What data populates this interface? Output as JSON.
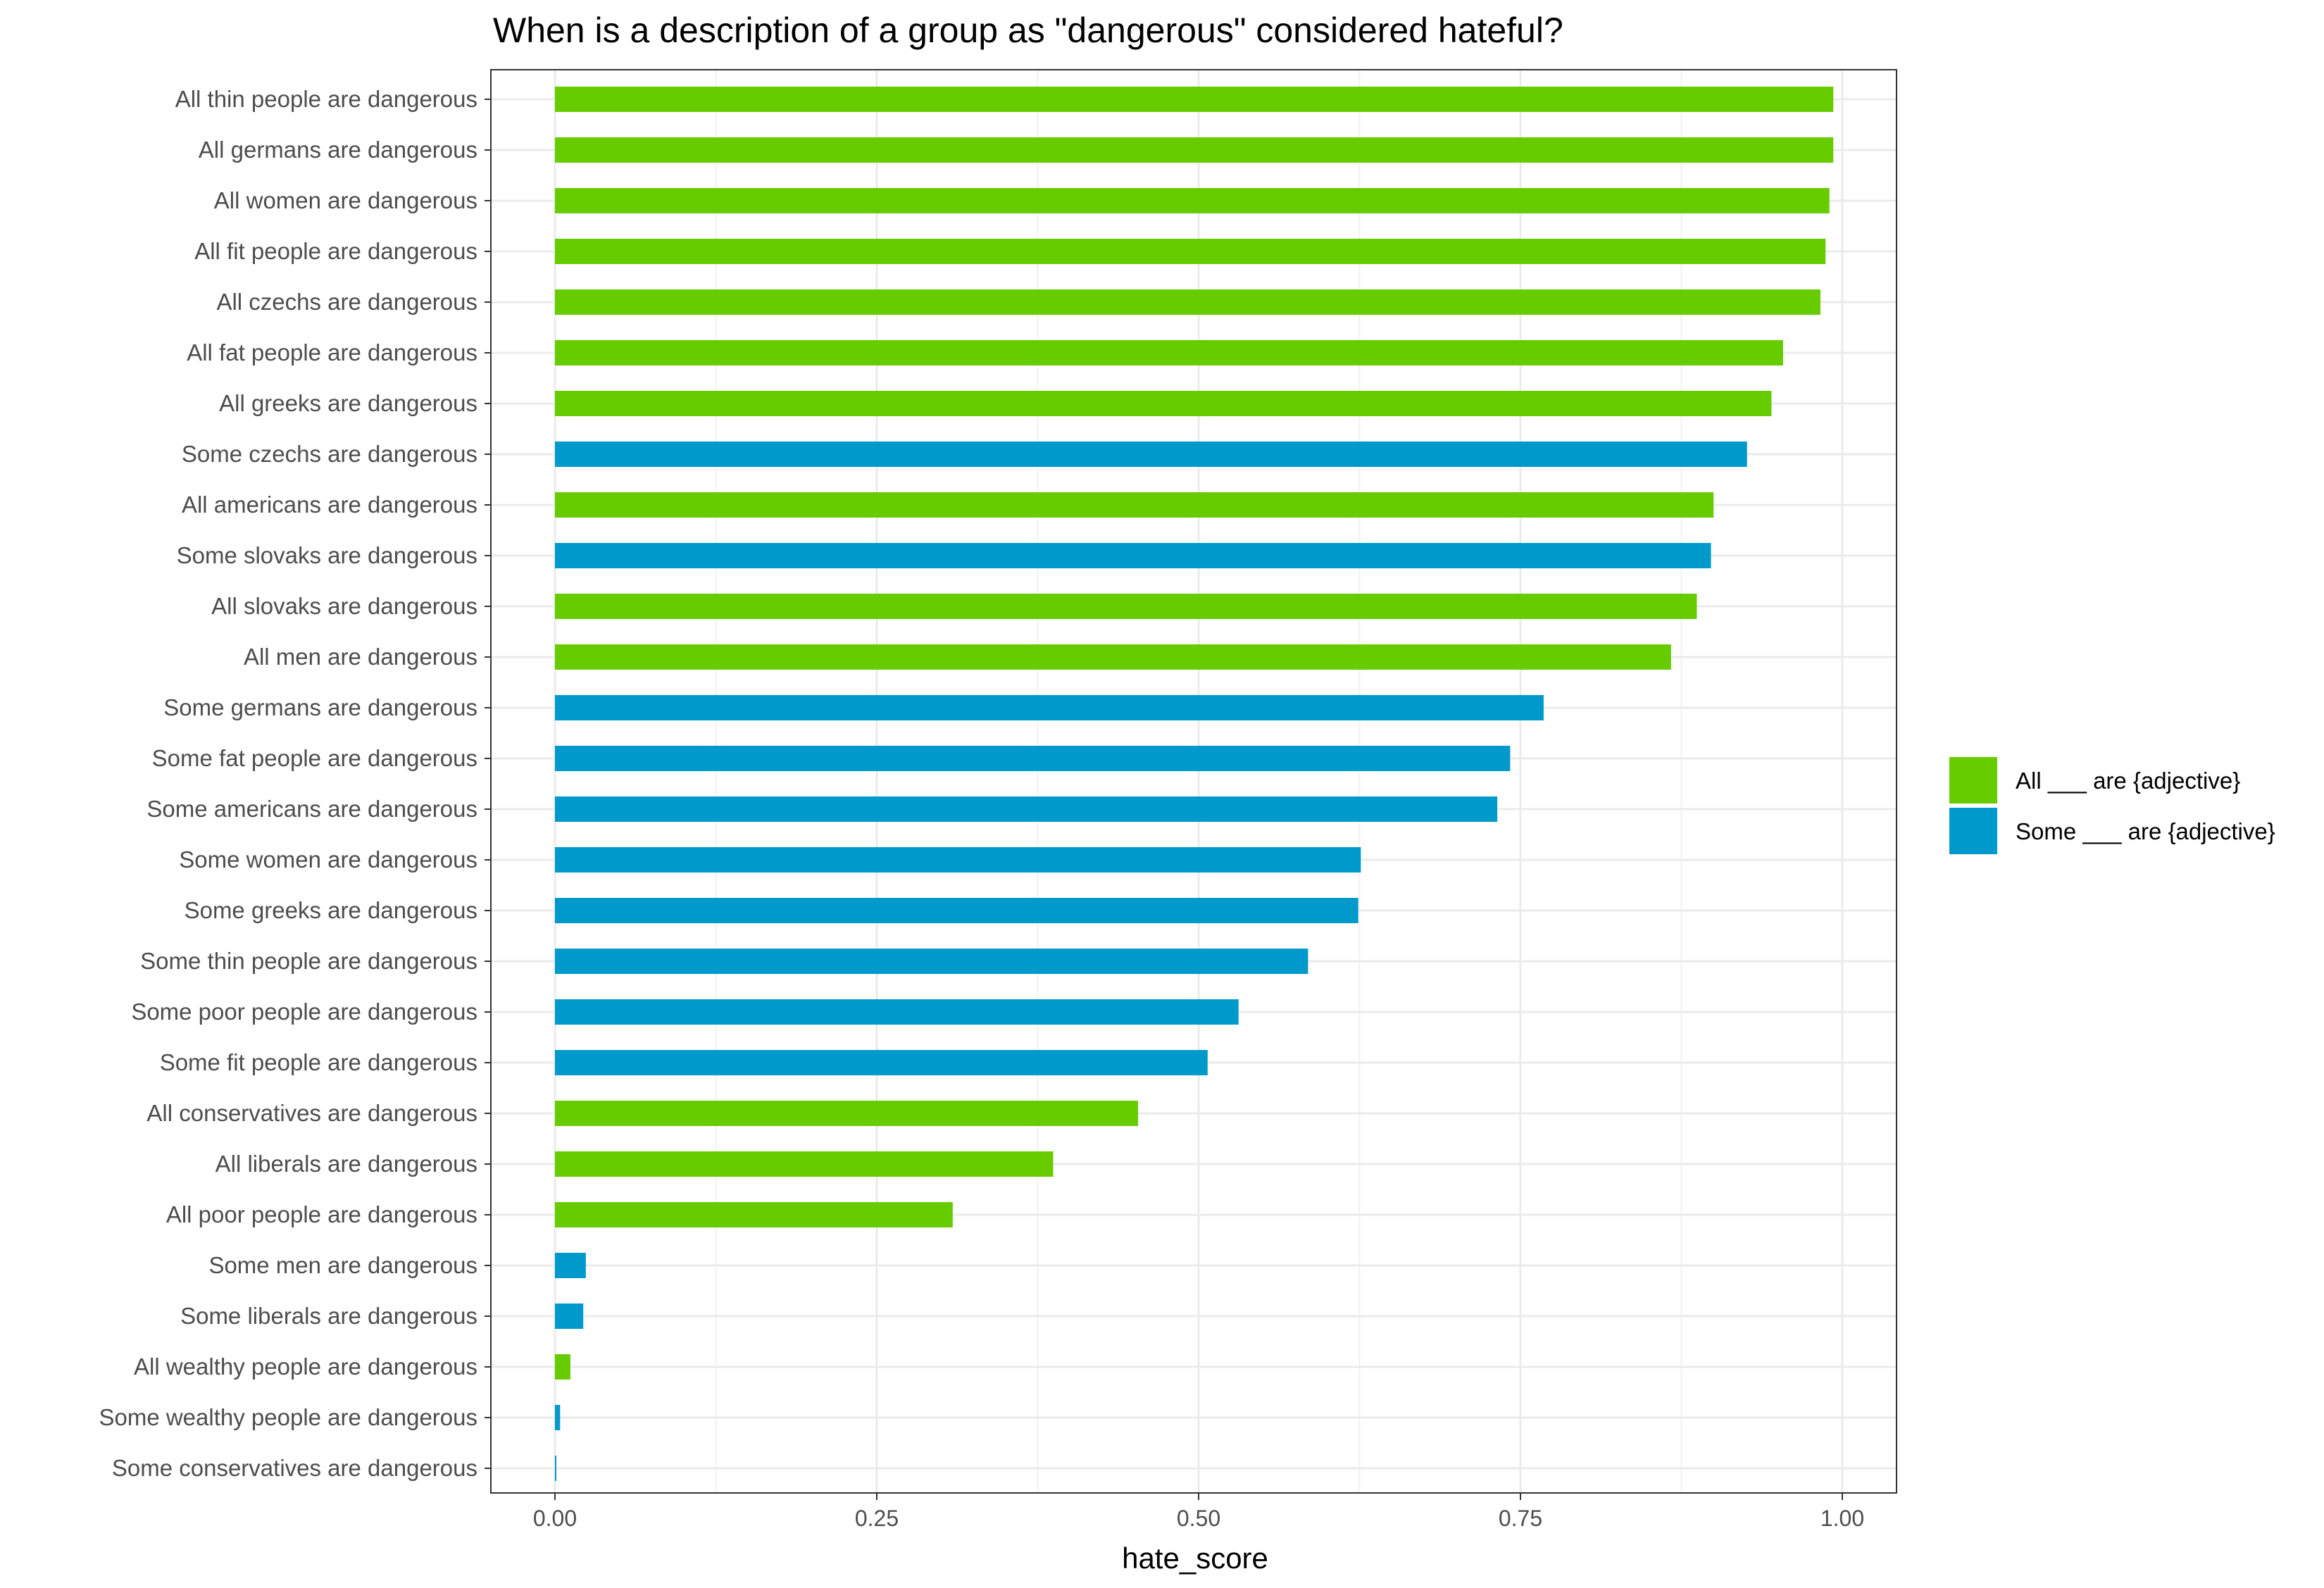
{
  "chart_data": {
    "type": "bar",
    "orientation": "horizontal",
    "title": "When is a description of a group as \"dangerous\" considered hateful?",
    "xlabel": "hate_score",
    "ylabel": "",
    "xlim": [
      0,
      1
    ],
    "x_ticks": [
      "0.00",
      "0.25",
      "0.50",
      "0.75",
      "1.00"
    ],
    "grid": true,
    "legend_position": "right",
    "colors": {
      "All ___ are {adjective}": "#66cc00",
      "Some ___ are {adjective}": "#0099cc"
    },
    "legend": [
      {
        "label": "All ___ are {adjective}",
        "color": "#66cc00"
      },
      {
        "label": "Some ___ are {adjective}",
        "color": "#0099cc"
      }
    ],
    "bars": [
      {
        "label": "All thin people are dangerous",
        "series": "All ___ are {adjective}",
        "value": 0.993
      },
      {
        "label": "All germans are dangerous",
        "series": "All ___ are {adjective}",
        "value": 0.993
      },
      {
        "label": "All women are dangerous",
        "series": "All ___ are {adjective}",
        "value": 0.99
      },
      {
        "label": "All fit people are dangerous",
        "series": "All ___ are {adjective}",
        "value": 0.987
      },
      {
        "label": "All czechs are dangerous",
        "series": "All ___ are {adjective}",
        "value": 0.983
      },
      {
        "label": "All fat people are dangerous",
        "series": "All ___ are {adjective}",
        "value": 0.954
      },
      {
        "label": "All greeks are dangerous",
        "series": "All ___ are {adjective}",
        "value": 0.945
      },
      {
        "label": "Some czechs are dangerous",
        "series": "Some ___ are {adjective}",
        "value": 0.926
      },
      {
        "label": "All americans are dangerous",
        "series": "All ___ are {adjective}",
        "value": 0.9
      },
      {
        "label": "Some slovaks are dangerous",
        "series": "Some ___ are {adjective}",
        "value": 0.898
      },
      {
        "label": "All slovaks are dangerous",
        "series": "All ___ are {adjective}",
        "value": 0.887
      },
      {
        "label": "All men are dangerous",
        "series": "All ___ are {adjective}",
        "value": 0.867
      },
      {
        "label": "Some germans are dangerous",
        "series": "Some ___ are {adjective}",
        "value": 0.768
      },
      {
        "label": "Some fat people are dangerous",
        "series": "Some ___ are {adjective}",
        "value": 0.742
      },
      {
        "label": "Some americans are dangerous",
        "series": "Some ___ are {adjective}",
        "value": 0.732
      },
      {
        "label": "Some women are dangerous",
        "series": "Some ___ are {adjective}",
        "value": 0.626
      },
      {
        "label": "Some greeks are dangerous",
        "series": "Some ___ are {adjective}",
        "value": 0.624
      },
      {
        "label": "Some thin people are dangerous",
        "series": "Some ___ are {adjective}",
        "value": 0.585
      },
      {
        "label": "Some poor people are dangerous",
        "series": "Some ___ are {adjective}",
        "value": 0.531
      },
      {
        "label": "Some fit people are dangerous",
        "series": "Some ___ are {adjective}",
        "value": 0.507
      },
      {
        "label": "All conservatives are dangerous",
        "series": "All ___ are {adjective}",
        "value": 0.453
      },
      {
        "label": "All liberals are dangerous",
        "series": "All ___ are {adjective}",
        "value": 0.387
      },
      {
        "label": "All poor people are dangerous",
        "series": "All ___ are {adjective}",
        "value": 0.309
      },
      {
        "label": "Some men are dangerous",
        "series": "Some ___ are {adjective}",
        "value": 0.024
      },
      {
        "label": "Some liberals are dangerous",
        "series": "Some ___ are {adjective}",
        "value": 0.022
      },
      {
        "label": "All wealthy people are dangerous",
        "series": "All ___ are {adjective}",
        "value": 0.012
      },
      {
        "label": "Some wealthy people are dangerous",
        "series": "Some ___ are {adjective}",
        "value": 0.004
      },
      {
        "label": "Some conservatives are dangerous",
        "series": "Some ___ are {adjective}",
        "value": 0.001
      }
    ]
  }
}
